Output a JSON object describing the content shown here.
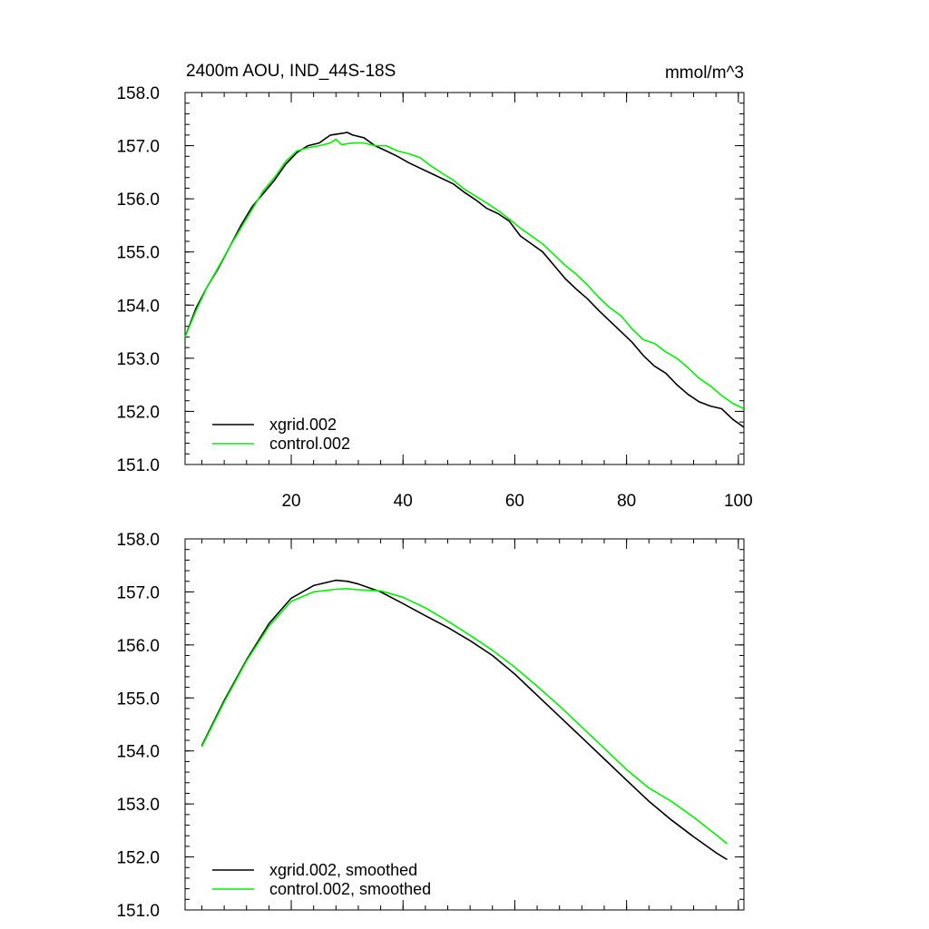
{
  "chart_data": [
    {
      "type": "line",
      "title": "2400m AOU, IND_44S-18S",
      "units": "mmol/m^3",
      "xlim": [
        1,
        101
      ],
      "ylim": [
        151,
        158
      ],
      "yticks": [
        151,
        152,
        153,
        154,
        155,
        156,
        157,
        158
      ],
      "ytick_labels": [
        "151.0",
        "152.0",
        "153.0",
        "154.0",
        "155.0",
        "156.0",
        "157.0",
        "158.0"
      ],
      "xticks": [
        20,
        40,
        60,
        80,
        100
      ],
      "xtick_labels": [
        "20",
        "40",
        "60",
        "80",
        "100"
      ],
      "legend_position": "bottom-left",
      "series": [
        {
          "name": "xgrid.002",
          "color": "#000000",
          "x": [
            1,
            3,
            5,
            7,
            9,
            11,
            13,
            15,
            17,
            19,
            21,
            23,
            25,
            27,
            29,
            30,
            31,
            33,
            35,
            37,
            39,
            41,
            43,
            45,
            47,
            49,
            51,
            53,
            55,
            57,
            59,
            61,
            63,
            65,
            67,
            69,
            71,
            73,
            75,
            77,
            79,
            81,
            83,
            85,
            87,
            89,
            91,
            93,
            95,
            97,
            99,
            101
          ],
          "y": [
            153.4,
            153.95,
            154.35,
            154.7,
            155.1,
            155.5,
            155.85,
            156.1,
            156.35,
            156.65,
            156.87,
            157.0,
            157.05,
            157.2,
            157.23,
            157.25,
            157.2,
            157.15,
            157.0,
            156.9,
            156.8,
            156.68,
            156.58,
            156.48,
            156.38,
            156.28,
            156.12,
            155.98,
            155.82,
            155.72,
            155.58,
            155.3,
            155.15,
            155.0,
            154.75,
            154.5,
            154.3,
            154.12,
            153.9,
            153.7,
            153.5,
            153.3,
            153.05,
            152.85,
            152.72,
            152.5,
            152.32,
            152.18,
            152.1,
            152.05,
            151.85,
            151.7
          ]
        },
        {
          "name": "control.002",
          "color": "#00ee00",
          "x": [
            1,
            3,
            5,
            7,
            9,
            11,
            13,
            15,
            17,
            19,
            21,
            23,
            25,
            27,
            28,
            29,
            31,
            33,
            35,
            37,
            39,
            41,
            43,
            45,
            47,
            49,
            51,
            53,
            55,
            57,
            59,
            61,
            63,
            65,
            67,
            69,
            71,
            73,
            75,
            77,
            79,
            81,
            83,
            85,
            87,
            89,
            91,
            93,
            95,
            97,
            99,
            101
          ],
          "y": [
            153.4,
            153.9,
            154.35,
            154.72,
            155.1,
            155.45,
            155.8,
            156.15,
            156.4,
            156.7,
            156.9,
            156.96,
            157.0,
            157.05,
            157.12,
            157.02,
            157.05,
            157.05,
            157.0,
            157.0,
            156.9,
            156.85,
            156.78,
            156.62,
            156.48,
            156.35,
            156.18,
            156.05,
            155.92,
            155.78,
            155.62,
            155.45,
            155.3,
            155.15,
            154.95,
            154.75,
            154.58,
            154.38,
            154.15,
            153.95,
            153.8,
            153.55,
            153.35,
            153.28,
            153.12,
            153.0,
            152.82,
            152.62,
            152.48,
            152.3,
            152.15,
            152.05
          ]
        }
      ]
    },
    {
      "type": "line",
      "xlim": [
        1,
        101
      ],
      "ylim": [
        151,
        158
      ],
      "yticks": [
        151,
        152,
        153,
        154,
        155,
        156,
        157,
        158
      ],
      "ytick_labels": [
        "151.0",
        "152.0",
        "153.0",
        "154.0",
        "155.0",
        "156.0",
        "157.0",
        "158.0"
      ],
      "xticks": [
        20,
        40,
        60,
        80,
        100
      ],
      "legend_position": "bottom-left",
      "series": [
        {
          "name": "xgrid.002, smoothed",
          "color": "#000000",
          "x": [
            4,
            8,
            12,
            16,
            20,
            24,
            28,
            30,
            32,
            36,
            40,
            44,
            48,
            52,
            56,
            60,
            64,
            68,
            72,
            76,
            80,
            84,
            88,
            92,
            96,
            98
          ],
          "y": [
            154.1,
            154.95,
            155.72,
            156.4,
            156.88,
            157.12,
            157.22,
            157.2,
            157.15,
            157.0,
            156.78,
            156.55,
            156.33,
            156.08,
            155.8,
            155.45,
            155.05,
            154.65,
            154.25,
            153.85,
            153.45,
            153.05,
            152.7,
            152.38,
            152.08,
            151.95
          ]
        },
        {
          "name": "control.002, smoothed",
          "color": "#00ee00",
          "x": [
            4,
            8,
            12,
            16,
            20,
            24,
            28,
            30,
            32,
            36,
            40,
            44,
            48,
            52,
            56,
            60,
            64,
            68,
            72,
            76,
            80,
            84,
            88,
            92,
            96,
            98
          ],
          "y": [
            154.08,
            154.92,
            155.7,
            156.35,
            156.82,
            157.0,
            157.05,
            157.06,
            157.04,
            157.02,
            156.9,
            156.7,
            156.45,
            156.18,
            155.9,
            155.58,
            155.22,
            154.85,
            154.45,
            154.05,
            153.65,
            153.3,
            153.05,
            152.75,
            152.42,
            152.25
          ]
        }
      ]
    }
  ]
}
